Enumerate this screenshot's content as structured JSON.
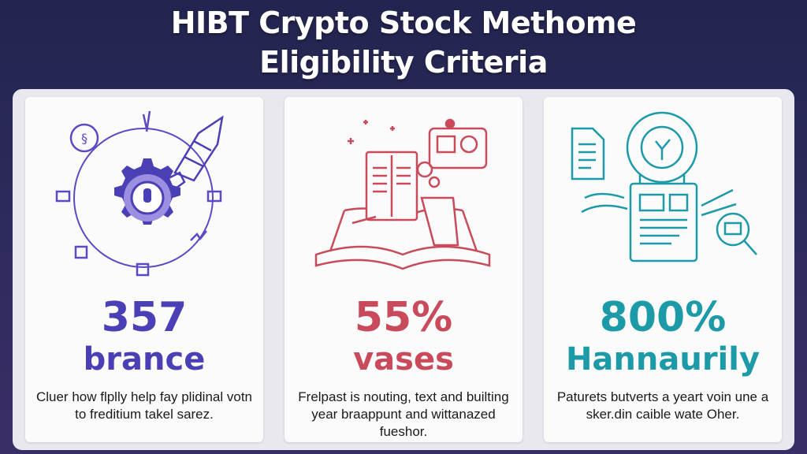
{
  "title": {
    "line1": "HIBT Crypto Stock Methome",
    "line2": "Eligibility Criteria"
  },
  "cards": [
    {
      "number": "357",
      "word": "brance",
      "description": "Cluer how flplly help fay plidinal votn to freditium takel sarez.",
      "icon": "gear-with-rocket-icon",
      "accent": "#4b3fb6"
    },
    {
      "number": "55%",
      "word": "vases",
      "description": "Frelpast is nouting, text and builting year braappunt and wittanazed fueshor.",
      "icon": "open-book-document-icon",
      "accent": "#c94a5a"
    },
    {
      "number": "800%",
      "word": "Hannaurily",
      "description": "Paturets butverts a yeart voin une a sker.din caible wate Oher.",
      "icon": "document-checklist-icon",
      "accent": "#1d9aa8"
    }
  ]
}
